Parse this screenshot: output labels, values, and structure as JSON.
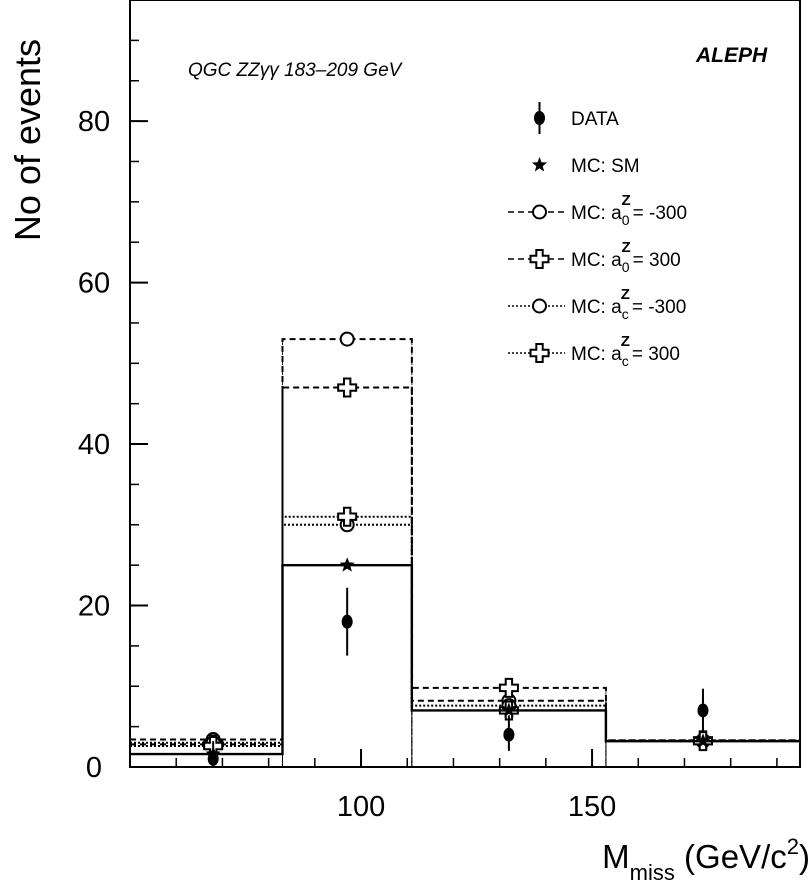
{
  "chart_data": {
    "type": "step-histogram",
    "x_axis": {
      "label_main": "M",
      "label_sub": "miss",
      "label_unit": "(GeV/c",
      "label_unit_sup": "2",
      "label_unit_close": ")",
      "range": [
        50,
        195
      ],
      "major_ticks": [
        100,
        150
      ],
      "tick_labels": [
        "100",
        "150"
      ],
      "minor_step": 10
    },
    "y_axis": {
      "label": "No of events",
      "range": [
        0,
        95
      ],
      "major_ticks": [
        0,
        20,
        40,
        60,
        80
      ],
      "tick_labels": [
        "0",
        "20",
        "40",
        "60",
        "80"
      ],
      "minor_step": 5
    },
    "bins": [
      {
        "low": 50,
        "high": 83
      },
      {
        "low": 83,
        "high": 111
      },
      {
        "low": 111,
        "high": 153
      },
      {
        "low": 153,
        "high": 195
      }
    ],
    "bin_centers": [
      68,
      97,
      132,
      174
    ],
    "series": [
      {
        "name": "DATA",
        "kind": "data",
        "values": [
          1,
          18,
          4,
          7
        ],
        "err_low": [
          1,
          4.2,
          2,
          2.7
        ],
        "err_high": [
          2.2,
          4.2,
          2.4,
          2.7
        ]
      },
      {
        "name": "MC: SM",
        "kind": "mc-sm",
        "values": [
          1.6,
          25,
          7,
          3.2
        ]
      },
      {
        "name": "MC: a0z = -300",
        "kind": "mc-a0-neg",
        "values": [
          3.4,
          53,
          8.2,
          3.3
        ]
      },
      {
        "name": "MC: a0z = 300",
        "kind": "mc-a0-pos",
        "values": [
          2.8,
          47,
          9.8,
          3.3
        ]
      },
      {
        "name": "MC: acz = -300",
        "kind": "mc-ac-neg",
        "values": [
          3.0,
          30,
          7.6,
          3.2
        ]
      },
      {
        "name": "MC: acz = 300",
        "kind": "mc-ac-pos",
        "values": [
          2.6,
          31,
          7.0,
          3.2
        ]
      }
    ],
    "legend": {
      "placement": "top-right",
      "entries": [
        {
          "prefix": "DATA",
          "sup": "",
          "sub": "",
          "suffix": ""
        },
        {
          "prefix": "MC: SM",
          "sup": "",
          "sub": "",
          "suffix": ""
        },
        {
          "prefix": "MC: a",
          "sup": "Z",
          "sub": "0",
          "suffix": "= -300"
        },
        {
          "prefix": "MC: a",
          "sup": "Z",
          "sub": "0",
          "suffix": "=  300"
        },
        {
          "prefix": "MC: a",
          "sup": "Z",
          "sub": "c",
          "suffix": "= -300"
        },
        {
          "prefix": "MC: a",
          "sup": "Z",
          "sub": "c",
          "suffix": "=  300"
        }
      ]
    },
    "annotation": "QGC ZZγγ 183–209 GeV",
    "brand": "ALEPH",
    "grid": false
  }
}
